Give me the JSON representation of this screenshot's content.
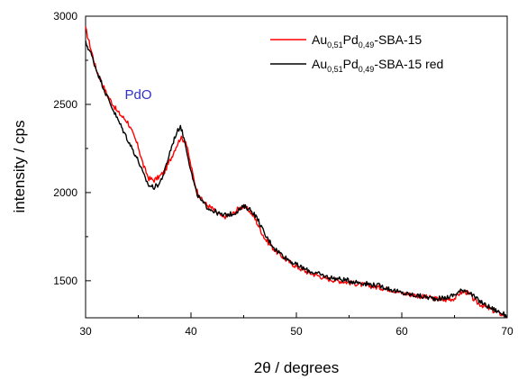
{
  "chart_data": {
    "type": "line",
    "xlabel": "2θ / degrees",
    "ylabel": "intensity / cps",
    "xlim": [
      30,
      70
    ],
    "ylim": [
      1290,
      3000
    ],
    "x_ticks": [
      30,
      40,
      50,
      60,
      70
    ],
    "y_ticks": [
      1500,
      2000,
      2500,
      3000
    ],
    "grid": false,
    "legend_position": "top-right",
    "series": [
      {
        "name_parts": [
          "Au",
          "0,51",
          "Pd",
          "0,49",
          "-SBA-15"
        ],
        "color": "#ff0000",
        "x": [
          30,
          31,
          32,
          33,
          34,
          35,
          35.5,
          36,
          36.5,
          37,
          37.5,
          38,
          38.5,
          39,
          39.5,
          40,
          40.5,
          41,
          41.5,
          42,
          43,
          44,
          44.5,
          45,
          45.5,
          46,
          46.5,
          47,
          48,
          49,
          50,
          51,
          52,
          53,
          54,
          55,
          56,
          57,
          58,
          59,
          60,
          61,
          62,
          63,
          64,
          65,
          65.5,
          66,
          66.5,
          67,
          68,
          69,
          70
        ],
        "y": [
          2930,
          2700,
          2560,
          2460,
          2400,
          2260,
          2150,
          2080,
          2070,
          2090,
          2120,
          2180,
          2250,
          2310,
          2290,
          2150,
          2020,
          1960,
          1930,
          1910,
          1860,
          1880,
          1910,
          1920,
          1900,
          1860,
          1800,
          1740,
          1670,
          1620,
          1580,
          1550,
          1530,
          1510,
          1500,
          1490,
          1480,
          1470,
          1460,
          1450,
          1430,
          1420,
          1410,
          1400,
          1390,
          1400,
          1430,
          1440,
          1420,
          1380,
          1350,
          1320,
          1300
        ]
      },
      {
        "name_parts": [
          "Au",
          "0,51",
          "Pd",
          "0,49",
          "-SBA-15 red"
        ],
        "color": "#000000",
        "x": [
          30,
          30.5,
          31,
          32,
          33,
          34,
          35,
          35.5,
          36,
          36.5,
          37,
          37.5,
          38,
          38.5,
          39,
          39.5,
          40,
          40.5,
          41,
          41.5,
          42,
          43,
          44,
          44.5,
          45,
          45.5,
          46,
          46.5,
          47,
          48,
          49,
          50,
          51,
          52,
          53,
          54,
          55,
          56,
          57,
          58,
          59,
          60,
          61,
          62,
          63,
          64,
          65,
          65.5,
          66,
          66.5,
          67,
          68,
          69,
          70
        ],
        "y": [
          2850,
          2790,
          2700,
          2550,
          2420,
          2300,
          2180,
          2100,
          2040,
          2030,
          2050,
          2120,
          2230,
          2320,
          2380,
          2270,
          2120,
          2000,
          1950,
          1920,
          1900,
          1870,
          1880,
          1900,
          1920,
          1910,
          1880,
          1830,
          1760,
          1680,
          1630,
          1590,
          1560,
          1540,
          1520,
          1510,
          1500,
          1490,
          1480,
          1470,
          1450,
          1430,
          1420,
          1410,
          1400,
          1400,
          1420,
          1440,
          1450,
          1430,
          1400,
          1360,
          1330,
          1300
        ]
      }
    ],
    "annotations": [
      {
        "text": "PdO",
        "x": 35,
        "y": 2530,
        "color": "#3030c8"
      }
    ]
  }
}
